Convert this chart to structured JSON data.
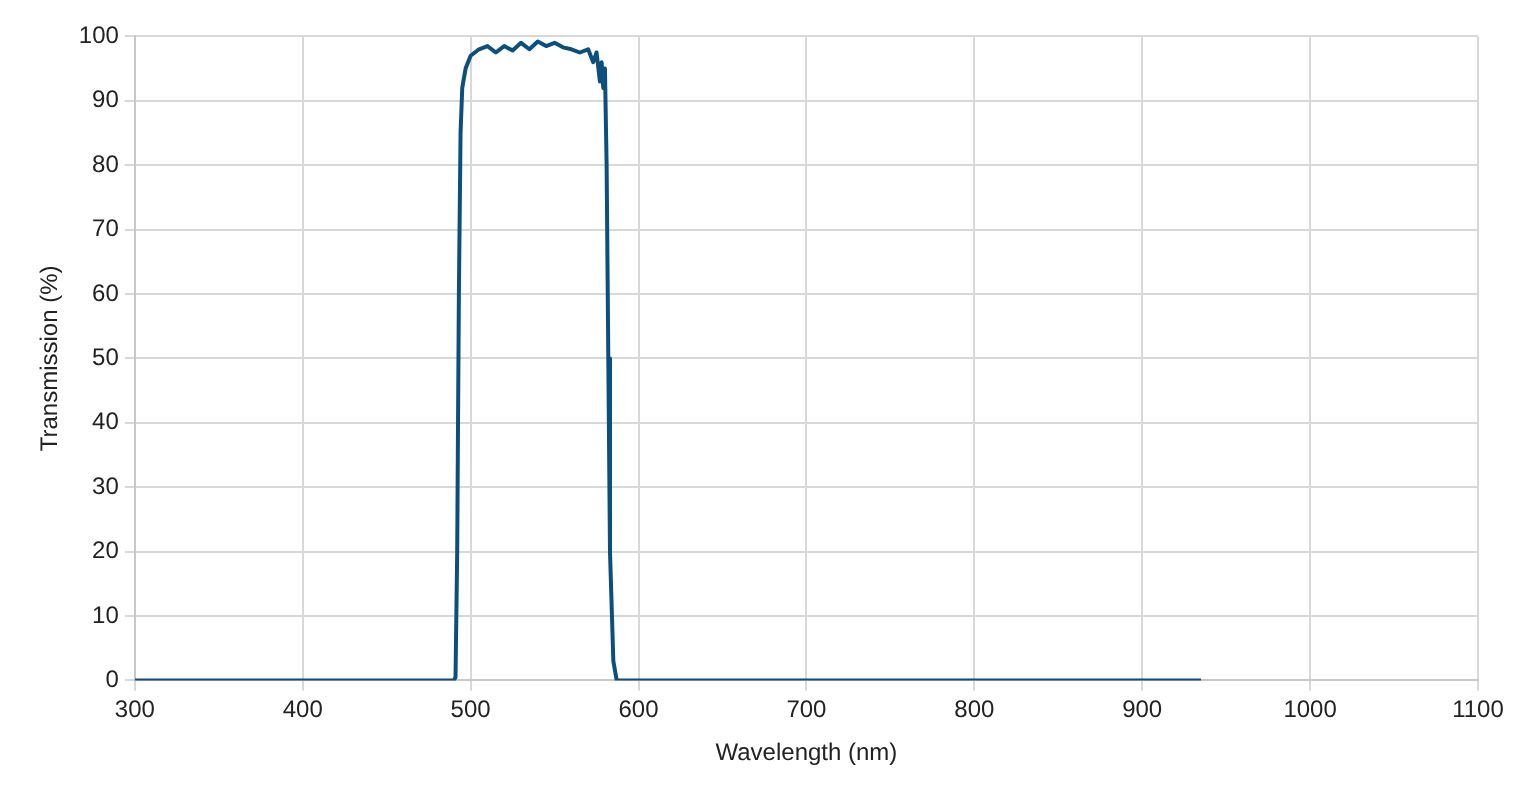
{
  "chart_data": {
    "type": "line",
    "xlabel": "Wavelength (nm)",
    "ylabel": "Transmission (%)",
    "x": [
      300,
      490,
      491,
      492,
      493,
      494,
      495,
      497,
      500,
      505,
      510,
      515,
      520,
      525,
      530,
      535,
      540,
      545,
      550,
      555,
      560,
      565,
      570,
      573,
      575,
      577,
      578,
      579,
      580,
      581,
      582,
      583,
      585,
      587,
      935
    ],
    "series": [
      {
        "color": "#0b4f7f",
        "values": [
          0,
          0,
          0.5,
          20,
          60,
          85,
          92,
          95,
          97,
          98,
          98.5,
          97.5,
          98.5,
          97.8,
          99,
          98,
          99.2,
          98.5,
          99,
          98.3,
          98,
          97.5,
          98,
          96,
          97.5,
          93,
          96,
          92,
          95,
          80,
          50,
          20,
          3,
          0,
          0
        ]
      }
    ],
    "xlim": [
      300,
      1100
    ],
    "xticks": [
      300,
      400,
      500,
      600,
      700,
      800,
      900,
      1000,
      1100
    ],
    "ylim": [
      0,
      100
    ],
    "yticks": [
      0,
      10,
      20,
      30,
      40,
      50,
      60,
      70,
      80,
      90,
      100
    ],
    "grid": true,
    "legend": false,
    "marker": "none",
    "line_style": "solid"
  }
}
